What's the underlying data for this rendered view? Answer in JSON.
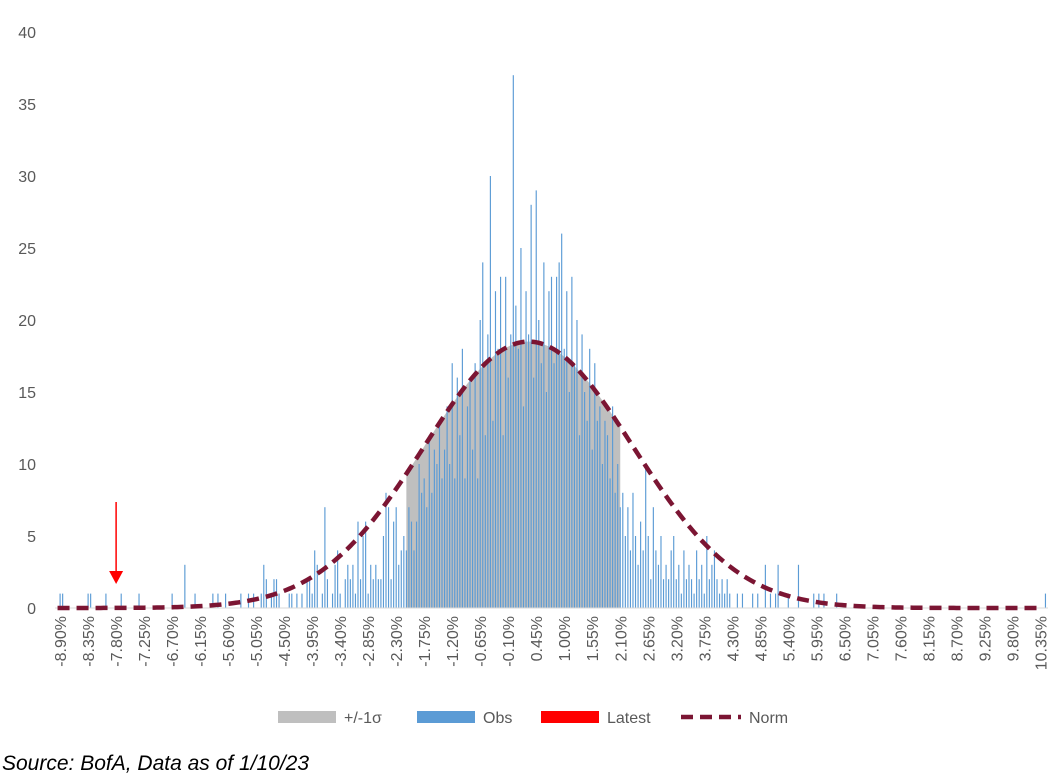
{
  "chart_data": {
    "type": "bar",
    "title": "",
    "xlabel": "",
    "ylabel": "",
    "ylim": [
      0,
      40
    ],
    "yticks": [
      0,
      5,
      10,
      15,
      20,
      25,
      30,
      35,
      40
    ],
    "xlim": [
      -9.0,
      10.5
    ],
    "bin_width": 0.05,
    "x_tick_labels": [
      "-8.90%",
      "-8.35%",
      "-7.80%",
      "-7.25%",
      "-6.70%",
      "-6.15%",
      "-5.60%",
      "-5.05%",
      "-4.50%",
      "-3.95%",
      "-3.40%",
      "-2.85%",
      "-2.30%",
      "-1.75%",
      "-1.20%",
      "-0.65%",
      "-0.10%",
      "0.45%",
      "1.00%",
      "1.55%",
      "2.10%",
      "2.65%",
      "3.20%",
      "3.75%",
      "4.30%",
      "4.85%",
      "5.40%",
      "5.95%",
      "6.50%",
      "7.05%",
      "7.60%",
      "8.15%",
      "8.70%",
      "9.25%",
      "9.80%",
      "10.35%"
    ],
    "legend": {
      "position": "bottom"
    },
    "grid": false,
    "series": [
      {
        "name": "+/-1σ",
        "kind": "band",
        "color": "#BFBFBF",
        "range": [
          -2.1,
          2.1
        ],
        "height_source": "Norm"
      },
      {
        "name": "Obs",
        "kind": "bar",
        "color": "#5B9BD5",
        "points": [
          [
            -8.9,
            1
          ],
          [
            -8.85,
            1
          ],
          [
            -8.35,
            1
          ],
          [
            -8.3,
            1
          ],
          [
            -8.0,
            1
          ],
          [
            -7.7,
            1
          ],
          [
            -7.35,
            1
          ],
          [
            -6.7,
            1
          ],
          [
            -6.45,
            3
          ],
          [
            -6.25,
            1
          ],
          [
            -5.9,
            1
          ],
          [
            -5.8,
            1
          ],
          [
            -5.65,
            1
          ],
          [
            -5.35,
            1
          ],
          [
            -5.2,
            1
          ],
          [
            -5.1,
            1
          ],
          [
            -4.95,
            1
          ],
          [
            -4.9,
            3
          ],
          [
            -4.85,
            2
          ],
          [
            -4.75,
            1
          ],
          [
            -4.7,
            2
          ],
          [
            -4.65,
            2
          ],
          [
            -4.6,
            1
          ],
          [
            -4.4,
            1
          ],
          [
            -4.35,
            1
          ],
          [
            -4.25,
            1
          ],
          [
            -4.15,
            1
          ],
          [
            -4.05,
            2
          ],
          [
            -4.0,
            2
          ],
          [
            -3.95,
            1
          ],
          [
            -3.9,
            4
          ],
          [
            -3.85,
            3
          ],
          [
            -3.75,
            1
          ],
          [
            -3.7,
            7
          ],
          [
            -3.65,
            2
          ],
          [
            -3.55,
            1
          ],
          [
            -3.5,
            3
          ],
          [
            -3.45,
            4
          ],
          [
            -3.4,
            1
          ],
          [
            -3.3,
            2
          ],
          [
            -3.25,
            3
          ],
          [
            -3.2,
            2
          ],
          [
            -3.15,
            3
          ],
          [
            -3.1,
            1
          ],
          [
            -3.05,
            6
          ],
          [
            -3.0,
            2
          ],
          [
            -2.95,
            5
          ],
          [
            -2.9,
            6
          ],
          [
            -2.85,
            1
          ],
          [
            -2.8,
            3
          ],
          [
            -2.75,
            2
          ],
          [
            -2.7,
            3
          ],
          [
            -2.65,
            2
          ],
          [
            -2.6,
            2
          ],
          [
            -2.55,
            5
          ],
          [
            -2.5,
            8
          ],
          [
            -2.45,
            7
          ],
          [
            -2.4,
            2
          ],
          [
            -2.35,
            6
          ],
          [
            -2.3,
            7
          ],
          [
            -2.25,
            3
          ],
          [
            -2.2,
            4
          ],
          [
            -2.15,
            5
          ],
          [
            -2.1,
            4
          ],
          [
            -2.05,
            7
          ],
          [
            -2.0,
            6
          ],
          [
            -1.95,
            4
          ],
          [
            -1.9,
            6
          ],
          [
            -1.85,
            10
          ],
          [
            -1.8,
            8
          ],
          [
            -1.75,
            9
          ],
          [
            -1.7,
            7
          ],
          [
            -1.65,
            12
          ],
          [
            -1.6,
            8
          ],
          [
            -1.55,
            11
          ],
          [
            -1.5,
            10
          ],
          [
            -1.45,
            13
          ],
          [
            -1.4,
            9
          ],
          [
            -1.35,
            11
          ],
          [
            -1.3,
            14
          ],
          [
            -1.25,
            10
          ],
          [
            -1.2,
            17
          ],
          [
            -1.15,
            9
          ],
          [
            -1.1,
            16
          ],
          [
            -1.05,
            12
          ],
          [
            -1.0,
            18
          ],
          [
            -0.95,
            9
          ],
          [
            -0.9,
            14
          ],
          [
            -0.85,
            16
          ],
          [
            -0.8,
            11
          ],
          [
            -0.75,
            17
          ],
          [
            -0.7,
            9
          ],
          [
            -0.65,
            20
          ],
          [
            -0.6,
            24
          ],
          [
            -0.55,
            12
          ],
          [
            -0.5,
            19
          ],
          [
            -0.45,
            30
          ],
          [
            -0.4,
            13
          ],
          [
            -0.35,
            22
          ],
          [
            -0.3,
            18
          ],
          [
            -0.25,
            23
          ],
          [
            -0.2,
            12
          ],
          [
            -0.15,
            23
          ],
          [
            -0.1,
            16
          ],
          [
            -0.05,
            19
          ],
          [
            0.0,
            37
          ],
          [
            0.05,
            21
          ],
          [
            0.1,
            18
          ],
          [
            0.15,
            25
          ],
          [
            0.2,
            14
          ],
          [
            0.25,
            22
          ],
          [
            0.3,
            19
          ],
          [
            0.35,
            28
          ],
          [
            0.4,
            16
          ],
          [
            0.45,
            29
          ],
          [
            0.5,
            20
          ],
          [
            0.55,
            17
          ],
          [
            0.6,
            24
          ],
          [
            0.65,
            15
          ],
          [
            0.7,
            22
          ],
          [
            0.75,
            23
          ],
          [
            0.8,
            17
          ],
          [
            0.85,
            23
          ],
          [
            0.9,
            24
          ],
          [
            0.95,
            26
          ],
          [
            1.0,
            18
          ],
          [
            1.05,
            22
          ],
          [
            1.1,
            15
          ],
          [
            1.15,
            23
          ],
          [
            1.2,
            17
          ],
          [
            1.25,
            20
          ],
          [
            1.3,
            12
          ],
          [
            1.35,
            19
          ],
          [
            1.4,
            15
          ],
          [
            1.45,
            13
          ],
          [
            1.5,
            18
          ],
          [
            1.55,
            11
          ],
          [
            1.6,
            17
          ],
          [
            1.65,
            13
          ],
          [
            1.7,
            14
          ],
          [
            1.75,
            10
          ],
          [
            1.8,
            13
          ],
          [
            1.85,
            12
          ],
          [
            1.9,
            9
          ],
          [
            1.95,
            14
          ],
          [
            2.0,
            8
          ],
          [
            2.05,
            10
          ],
          [
            2.1,
            7
          ],
          [
            2.15,
            8
          ],
          [
            2.2,
            5
          ],
          [
            2.25,
            7
          ],
          [
            2.3,
            4
          ],
          [
            2.35,
            8
          ],
          [
            2.4,
            5
          ],
          [
            2.45,
            3
          ],
          [
            2.5,
            6
          ],
          [
            2.55,
            4
          ],
          [
            2.6,
            10
          ],
          [
            2.65,
            5
          ],
          [
            2.7,
            2
          ],
          [
            2.75,
            7
          ],
          [
            2.8,
            4
          ],
          [
            2.85,
            3
          ],
          [
            2.9,
            5
          ],
          [
            2.95,
            2
          ],
          [
            3.0,
            3
          ],
          [
            3.05,
            2
          ],
          [
            3.1,
            4
          ],
          [
            3.15,
            5
          ],
          [
            3.2,
            2
          ],
          [
            3.25,
            3
          ],
          [
            3.3,
            1
          ],
          [
            3.35,
            4
          ],
          [
            3.4,
            2
          ],
          [
            3.45,
            3
          ],
          [
            3.5,
            2
          ],
          [
            3.55,
            1
          ],
          [
            3.6,
            4
          ],
          [
            3.65,
            2
          ],
          [
            3.7,
            3
          ],
          [
            3.75,
            1
          ],
          [
            3.8,
            5
          ],
          [
            3.85,
            2
          ],
          [
            3.9,
            3
          ],
          [
            3.95,
            4
          ],
          [
            4.0,
            2
          ],
          [
            4.05,
            1
          ],
          [
            4.1,
            2
          ],
          [
            4.15,
            1
          ],
          [
            4.2,
            2
          ],
          [
            4.25,
            1
          ],
          [
            4.4,
            1
          ],
          [
            4.5,
            1
          ],
          [
            4.7,
            1
          ],
          [
            4.8,
            1
          ],
          [
            4.95,
            3
          ],
          [
            5.05,
            1
          ],
          [
            5.15,
            1
          ],
          [
            5.2,
            3
          ],
          [
            5.4,
            1
          ],
          [
            5.6,
            3
          ],
          [
            5.9,
            1
          ],
          [
            6.0,
            1
          ],
          [
            6.1,
            1
          ],
          [
            6.35,
            1
          ],
          [
            10.45,
            1
          ]
        ]
      },
      {
        "name": "Latest",
        "kind": "marker",
        "color": "#FF0000",
        "x": -7.8
      },
      {
        "name": "Norm",
        "kind": "line",
        "color": "#7B1533",
        "dash": "dashed",
        "mean": 0.3,
        "sd": 2.05,
        "peak": 18.5
      }
    ]
  },
  "source_note": "Source: BofA, Data as of 1/10/23"
}
